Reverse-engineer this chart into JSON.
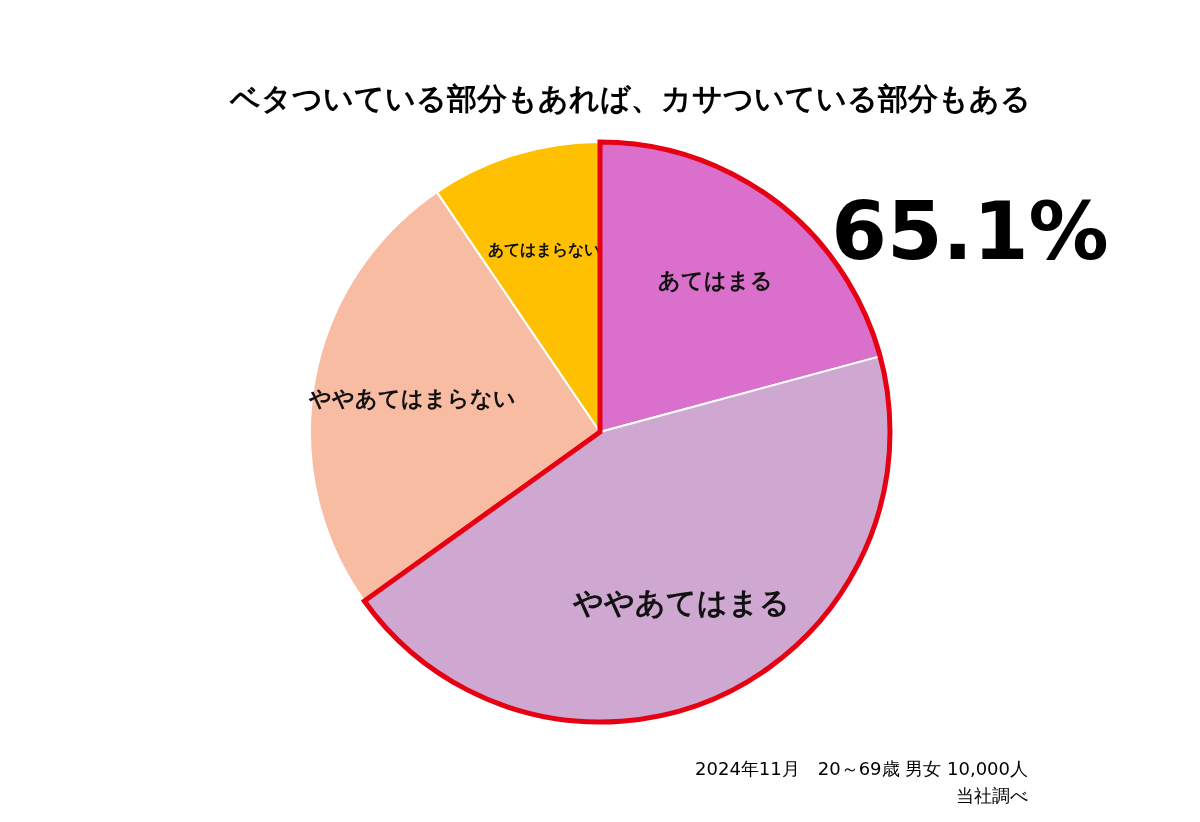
{
  "chart_data": {
    "type": "pie",
    "title": "ベタついている部分もあれば、カサついている部分もある",
    "categories": [
      "あてはまる",
      "ややあてはまる",
      "ややあてはまらない",
      "あてはまらない"
    ],
    "values": [
      20.8,
      44.3,
      25.4,
      9.5
    ],
    "colors": [
      "#da70cc",
      "#cfa8d2",
      "#f8bca3",
      "#fec000"
    ],
    "annotations": [
      "65.1%",
      "2024年11月　20～69歳 男女 10,000人",
      "当社調べ"
    ]
  }
}
